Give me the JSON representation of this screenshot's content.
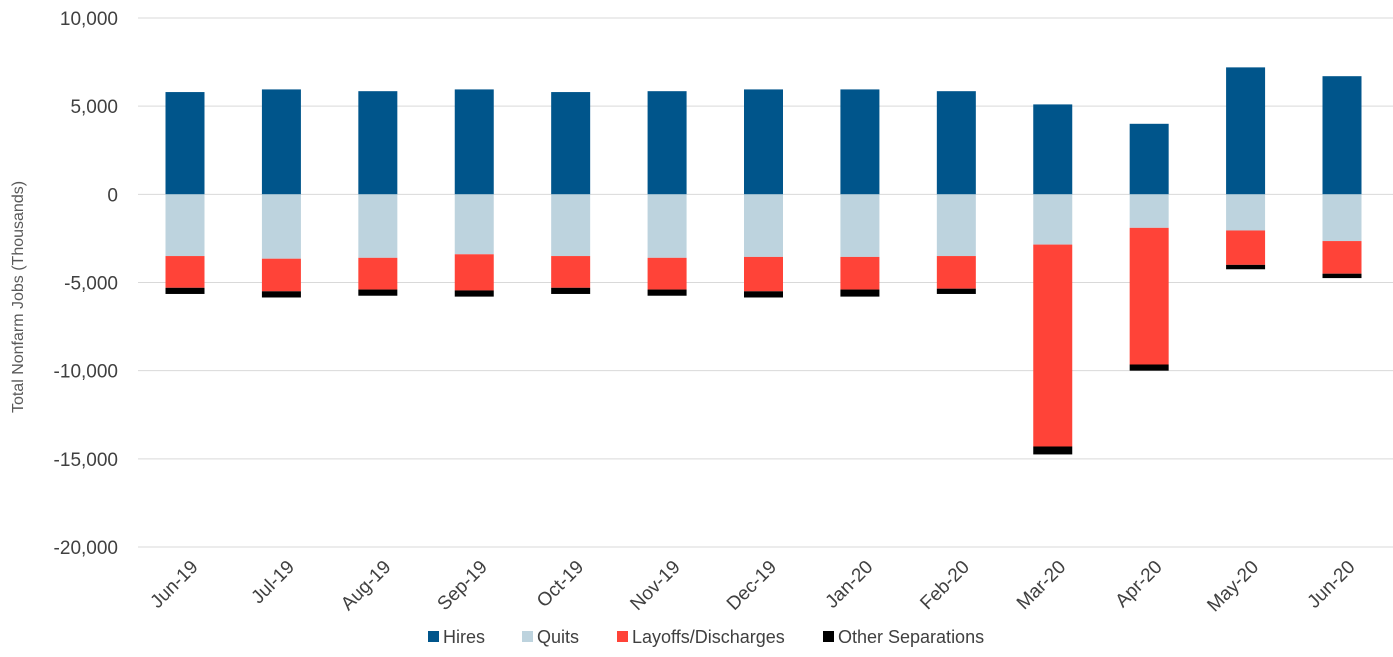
{
  "chart_data": {
    "type": "bar",
    "stacked": true,
    "categories": [
      "Jun-19",
      "Jul-19",
      "Aug-19",
      "Sep-19",
      "Oct-19",
      "Nov-19",
      "Dec-19",
      "Jan-20",
      "Feb-20",
      "Mar-20",
      "Apr-20",
      "May-20",
      "Jun-20"
    ],
    "series": [
      {
        "name": "Hires",
        "color": "#00558B",
        "values": [
          5800,
          5950,
          5850,
          5950,
          5800,
          5850,
          5950,
          5950,
          5850,
          5100,
          4000,
          7200,
          6700
        ]
      },
      {
        "name": "Quits",
        "color": "#BDD3DE",
        "values": [
          -3500,
          -3650,
          -3600,
          -3400,
          -3500,
          -3600,
          -3550,
          -3550,
          -3500,
          -2850,
          -1900,
          -2050,
          -2650
        ]
      },
      {
        "name": "Layoffs/Discharges",
        "color": "#FF4338",
        "values": [
          -1800,
          -1850,
          -1800,
          -2050,
          -1800,
          -1800,
          -1950,
          -1850,
          -1850,
          -11450,
          -7750,
          -1950,
          -1850
        ]
      },
      {
        "name": "Other Separations",
        "color": "#000000",
        "values": [
          -350,
          -350,
          -350,
          -350,
          -350,
          -350,
          -350,
          -400,
          -300,
          -450,
          -350,
          -250,
          -250
        ]
      }
    ],
    "ylabel": "Total Nonfarm Jobs (Thousands)",
    "xlabel": "",
    "ylim": [
      -20000,
      10000
    ],
    "yticks": [
      10000,
      5000,
      0,
      -5000,
      -10000,
      -15000,
      -20000
    ],
    "ytick_labels": [
      "10,000",
      "5,000",
      "0",
      "-5,000",
      "-10,000",
      "-15,000",
      "-20,000"
    ],
    "grid": true,
    "legend_position": "bottom"
  }
}
